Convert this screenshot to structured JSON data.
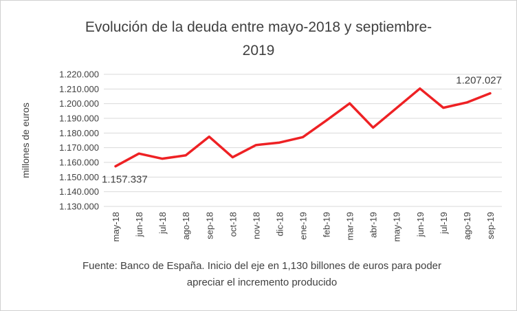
{
  "chart_data": {
    "type": "line",
    "title": "Evolución de la deuda entre mayo-2018 y septiembre-2019",
    "ylabel": "millones de euros",
    "xlabel": "",
    "categories": [
      "may-18",
      "jun-18",
      "jul-18",
      "ago-18",
      "sep-18",
      "oct-18",
      "nov-18",
      "dic-18",
      "ene-19",
      "feb-19",
      "mar-19",
      "abr-19",
      "may-19",
      "jun-19",
      "jul-19",
      "ago-19",
      "sep-19"
    ],
    "values": [
      1157337,
      1166000,
      1162500,
      1164800,
      1177500,
      1163500,
      1171800,
      1173500,
      1177200,
      1188500,
      1200200,
      1183700,
      1197000,
      1210300,
      1197200,
      1200800,
      1207027
    ],
    "ylim": [
      1130000,
      1220000
    ],
    "y_tick_step": 10000,
    "grid": true,
    "legend": false,
    "line_color": "#ee2124",
    "grid_color": "#d9d9d9",
    "text_color": "#404040",
    "annotations": [
      {
        "index": 0,
        "text": "1.157.337",
        "position": "below-left"
      },
      {
        "index": 16,
        "text": "1.207.027",
        "position": "above"
      }
    ],
    "footnote": "Fuente: Banco de España. Inicio del eje en 1,130 billones de euros para poder apreciar el incremento producido"
  }
}
